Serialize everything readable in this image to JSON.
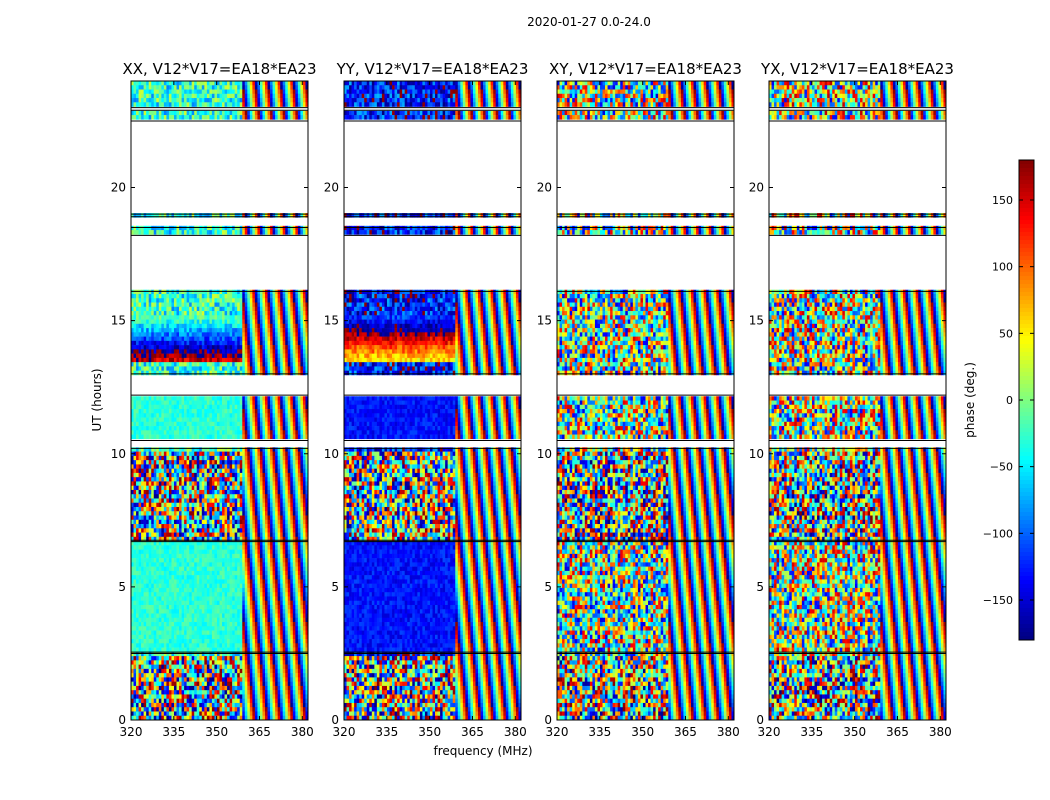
{
  "figure": {
    "suptitle": "2020-01-27 0.0-24.0"
  },
  "chart_data": {
    "type": "heatmap",
    "suptitle": "2020-01-27 0.0-24.0",
    "xlabel": "frequency (MHz)",
    "ylabel": "UT (hours)",
    "xlim": [
      320,
      382
    ],
    "ylim": [
      0,
      24
    ],
    "xticks": [
      320,
      335,
      350,
      365,
      380
    ],
    "xtick_labels": [
      "320",
      "335",
      "350",
      "365",
      "380"
    ],
    "yticks": [
      0,
      5,
      10,
      15,
      20
    ],
    "ytick_labels": [
      "0",
      "5",
      "10",
      "15",
      "20"
    ],
    "colorbar": {
      "label": "phase (deg.)",
      "range": [
        -180,
        180
      ],
      "ticks": [
        150,
        100,
        50,
        0,
        -50,
        -100,
        -150
      ],
      "tick_labels": [
        "150",
        "100",
        "50",
        "0",
        "−50",
        "−100",
        "−150"
      ],
      "colormap": "jet"
    },
    "gaps_hours": [
      [
        16.1,
        18.2
      ],
      [
        18.5,
        18.9
      ],
      [
        19.0,
        22.5
      ],
      [
        22.9,
        23.0
      ],
      [
        12.2,
        13.0
      ],
      [
        10.2,
        10.5
      ],
      [
        6.7,
        6.75
      ],
      [
        2.5,
        2.55
      ]
    ],
    "panels": [
      {
        "title": "XX, V12*V17=EA18*EA23",
        "polarization": "XX",
        "base_phase_deg": -30
      },
      {
        "title": "YY, V12*V17=EA18*EA23",
        "polarization": "YY",
        "base_phase_deg": -130
      },
      {
        "title": "XY, V12*V17=EA18*EA23",
        "polarization": "XY",
        "base_phase_deg": 0
      },
      {
        "title": "YX, V12*V17=EA18*EA23",
        "polarization": "YX",
        "base_phase_deg": 10
      }
    ]
  }
}
